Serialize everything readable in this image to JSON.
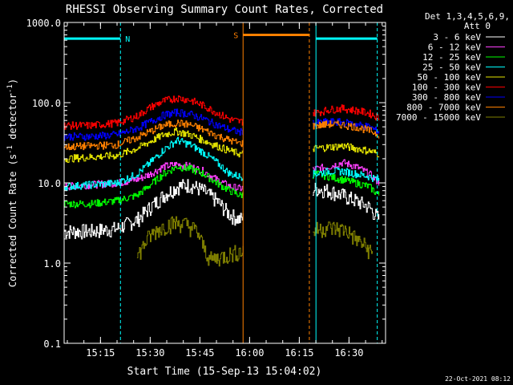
{
  "chart_data": {
    "type": "line",
    "title": "RHESSI Observing Summary Count Rates, Corrected",
    "xlabel": "Start Time (15-Sep-13 15:04:02)",
    "ylabel_main": "Corrected Count Rate (s",
    "ylabel_sup1": "-1",
    "ylabel_mid": " detector",
    "ylabel_sup2": "-1",
    "ylabel_end": ")",
    "yscale": "log",
    "ylim": [
      0.1,
      1000
    ],
    "xlim_minutes": [
      0,
      97
    ],
    "y_ticks": [
      {
        "value": 1000,
        "label": "1000.0"
      },
      {
        "value": 100,
        "label": "100.0"
      },
      {
        "value": 10,
        "label": "10.0"
      },
      {
        "value": 1,
        "label": "1.0"
      },
      {
        "value": 0.1,
        "label": "0.1"
      }
    ],
    "x_ticks": [
      {
        "value": 10.97,
        "label": "15:15"
      },
      {
        "value": 25.97,
        "label": "15:30"
      },
      {
        "value": 40.97,
        "label": "15:45"
      },
      {
        "value": 55.97,
        "label": "16:00"
      },
      {
        "value": 70.97,
        "label": "16:15"
      },
      {
        "value": 85.97,
        "label": "16:30"
      }
    ],
    "legend_header": [
      "Det 1,3,4,5,6,9,",
      "Att 0"
    ],
    "legend_position": "right",
    "series": [
      {
        "name": "3 - 6 keV",
        "color": "#ffffff",
        "x": [
          0,
          8,
          16,
          22,
          26,
          30,
          34,
          38,
          42,
          46,
          50,
          53,
          76,
          80,
          84,
          88,
          92,
          95
        ],
        "y": [
          2.5,
          2.5,
          2.7,
          3.5,
          5,
          7,
          9,
          9.5,
          8,
          6,
          4,
          3.5,
          8.5,
          8,
          7,
          6,
          5,
          3.5
        ]
      },
      {
        "name": "6 - 12 keV",
        "color": "#ff40ff",
        "x": [
          0,
          8,
          16,
          22,
          26,
          30,
          34,
          38,
          42,
          46,
          50,
          53,
          76,
          80,
          84,
          88,
          92,
          95
        ],
        "y": [
          9,
          9.5,
          10,
          11,
          13,
          16,
          17,
          16,
          14,
          11,
          9,
          8.5,
          15,
          16,
          18,
          16,
          13,
          10
        ]
      },
      {
        "name": "12 - 25 keV",
        "color": "#00ff00",
        "x": [
          0,
          8,
          16,
          22,
          26,
          30,
          34,
          38,
          42,
          46,
          50,
          53,
          76,
          80,
          84,
          88,
          92,
          95
        ],
        "y": [
          5.5,
          5.5,
          6,
          7,
          9.5,
          13,
          16,
          15,
          13,
          10,
          8,
          7,
          13,
          12,
          11,
          10,
          9,
          7
        ]
      },
      {
        "name": "25 - 50 keV",
        "color": "#00ffff",
        "x": [
          0,
          8,
          16,
          22,
          26,
          30,
          34,
          38,
          42,
          46,
          50,
          53,
          76,
          80,
          84,
          88,
          92,
          95
        ],
        "y": [
          9,
          9.5,
          10,
          13,
          18,
          26,
          34,
          30,
          24,
          18,
          13,
          12,
          13,
          14,
          14,
          13,
          12,
          11
        ]
      },
      {
        "name": "50 - 100 keV",
        "color": "#e6e600",
        "x": [
          0,
          8,
          16,
          22,
          26,
          30,
          34,
          38,
          42,
          46,
          50,
          53,
          76,
          80,
          84,
          88,
          92,
          95
        ],
        "y": [
          20,
          21,
          22,
          27,
          33,
          40,
          44,
          40,
          34,
          29,
          25,
          23,
          27,
          28,
          29,
          27,
          25,
          23
        ]
      },
      {
        "name": "100 - 300 keV",
        "color": "#ff0000",
        "x": [
          0,
          8,
          16,
          22,
          26,
          30,
          34,
          38,
          42,
          46,
          50,
          53,
          76,
          80,
          84,
          88,
          92,
          95
        ],
        "y": [
          52,
          52,
          56,
          68,
          88,
          105,
          115,
          108,
          92,
          75,
          62,
          58,
          75,
          82,
          85,
          80,
          74,
          65
        ]
      },
      {
        "name": "300 - 800 keV",
        "color": "#0000ff",
        "x": [
          0,
          8,
          16,
          22,
          26,
          30,
          34,
          38,
          42,
          46,
          50,
          53,
          76,
          80,
          84,
          88,
          92,
          95
        ],
        "y": [
          38,
          38,
          40,
          48,
          58,
          70,
          76,
          72,
          63,
          53,
          46,
          43,
          56,
          58,
          57,
          54,
          50,
          43
        ]
      },
      {
        "name": "800 - 7000 keV",
        "color": "#ff8000",
        "x": [
          0,
          8,
          16,
          22,
          26,
          30,
          34,
          38,
          42,
          46,
          50,
          53,
          76,
          80,
          84,
          88,
          92,
          95
        ],
        "y": [
          28,
          29,
          30,
          37,
          44,
          52,
          56,
          53,
          46,
          39,
          34,
          31,
          52,
          54,
          53,
          50,
          45,
          40
        ]
      },
      {
        "name": "7000 - 15000 keV",
        "color": "#808000",
        "x": [
          22,
          25,
          28,
          31,
          34,
          37,
          40,
          42,
          44,
          76,
          79,
          82,
          85,
          88,
          91,
          93
        ],
        "y": [
          1.2,
          2.0,
          2.6,
          3.0,
          3.2,
          3.0,
          2.5,
          1.6,
          1.1,
          2.6,
          2.8,
          2.7,
          2.6,
          2.0,
          1.6,
          1.3
        ]
      }
    ],
    "annotations": [
      {
        "label": "N",
        "color": "#00ffff"
      },
      {
        "label": "S",
        "color": "#ff8000"
      }
    ],
    "events": [
      {
        "kind": "night",
        "color": "#00ffff",
        "x_start": 0,
        "x_end": 17,
        "y": 630
      },
      {
        "kind": "saa",
        "color": "#ff8000",
        "x_start": 54,
        "x_end": 74,
        "y": 700
      },
      {
        "kind": "night",
        "color": "#00ffff",
        "x_start": 76,
        "x_end": 94.5,
        "y": 630
      }
    ],
    "data_gap": [
      54,
      75
    ]
  },
  "footer": {
    "date": "22-Oct-2021 08:12"
  }
}
